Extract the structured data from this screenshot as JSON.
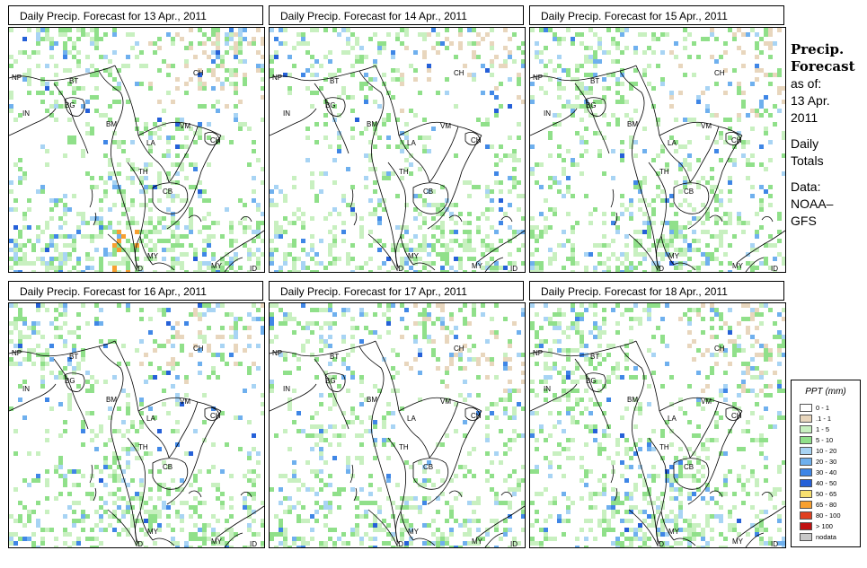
{
  "panels": [
    {
      "title": "Daily Precip. Forecast for  13 Apr., 2011",
      "intensity": 1.0
    },
    {
      "title": "Daily Precip. Forecast for  14 Apr., 2011",
      "intensity": 0.75
    },
    {
      "title": "Daily Precip. Forecast for  15 Apr., 2011",
      "intensity": 0.9
    },
    {
      "title": "Daily Precip. Forecast for  16 Apr., 2011",
      "intensity": 0.8
    },
    {
      "title": "Daily Precip. Forecast for  17 Apr., 2011",
      "intensity": 0.85
    },
    {
      "title": "Daily Precip. Forecast for  18 Apr., 2011",
      "intensity": 0.95
    }
  ],
  "map_labels": {
    "nepal": "NP",
    "bhutan": "BT",
    "bangladesh": "BG",
    "india": "IN",
    "burma": "BM",
    "china": "CH",
    "vietnam": "VM",
    "laos": "LA",
    "thailand": "TH",
    "cambodia": "CB",
    "malaysia": "MY",
    "indonesia": "ID",
    "hainan": "CH"
  },
  "sidebar": {
    "title_line1": "Precip.",
    "title_line2": "Forecast",
    "asof_label": "as of:",
    "date_line1": "13 Apr.",
    "date_line2": "2011",
    "totals_line1": "Daily",
    "totals_line2": "Totals",
    "data_line1": "Data:",
    "data_line2": "NOAA–",
    "data_line3": "GFS"
  },
  "legend": {
    "title": "PPT (mm)",
    "items": [
      {
        "label": "0 - 1",
        "color": "#ffffff"
      },
      {
        "label": ".1 - 1",
        "color": "#e8d6bd"
      },
      {
        "label": "1 - 5",
        "color": "#c8f0c0"
      },
      {
        "label": "5 - 10",
        "color": "#90e08a"
      },
      {
        "label": "10 - 20",
        "color": "#a8d4f4"
      },
      {
        "label": "20 - 30",
        "color": "#6fb0ee"
      },
      {
        "label": "30 - 40",
        "color": "#3f86e6"
      },
      {
        "label": "40 - 50",
        "color": "#2560d8"
      },
      {
        "label": "50 - 65",
        "color": "#f8e070"
      },
      {
        "label": "65 - 80",
        "color": "#f8a030"
      },
      {
        "label": "80 - 100",
        "color": "#e04020"
      },
      {
        "label": "> 100",
        "color": "#c01010"
      },
      {
        "label": "nodata",
        "color": "#c8c8c8"
      }
    ]
  }
}
